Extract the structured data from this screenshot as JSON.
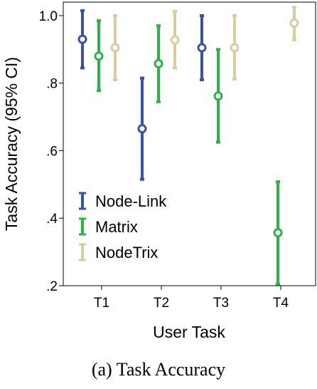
{
  "chart_data": {
    "type": "errorbar",
    "title": "",
    "xlabel": "User Task",
    "ylabel": "Task Accuracy (95% CI)",
    "categories": [
      "T1",
      "T2",
      "T3",
      "T4"
    ],
    "ylim": [
      0.2,
      1.04
    ],
    "yticks": [
      0.2,
      0.4,
      0.6,
      0.8,
      1.0
    ],
    "ytick_labels": [
      ".2",
      ".4",
      ".6",
      ".8",
      "1.0"
    ],
    "series": [
      {
        "name": "Node-Link",
        "color": "#3b52a3",
        "means": [
          0.93,
          0.665,
          0.905,
          null
        ],
        "lower": [
          0.845,
          0.515,
          0.81,
          null
        ],
        "upper": [
          1.015,
          0.815,
          1.0,
          null
        ]
      },
      {
        "name": "Matrix",
        "color": "#2bb24a",
        "means": [
          0.88,
          0.858,
          0.762,
          0.357
        ],
        "lower": [
          0.778,
          0.745,
          0.625,
          0.205
        ],
        "upper": [
          0.985,
          0.97,
          0.9,
          0.508
        ]
      },
      {
        "name": "NodeTrix",
        "color": "#d4cf9b",
        "means": [
          0.905,
          0.928,
          0.905,
          0.978
        ],
        "lower": [
          0.81,
          0.845,
          0.812,
          0.928
        ],
        "upper": [
          1.0,
          1.013,
          1.0,
          1.025
        ]
      }
    ],
    "legend": [
      "Node-Link",
      "Matrix",
      "NodeTrix"
    ],
    "legend_position": "bottom-left"
  },
  "caption": "(a)  Task Accuracy"
}
